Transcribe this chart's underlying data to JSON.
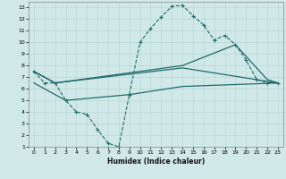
{
  "xlabel": "Humidex (Indice chaleur)",
  "xlim": [
    -0.5,
    23.5
  ],
  "ylim": [
    1,
    13.5
  ],
  "yticks": [
    1,
    2,
    3,
    4,
    5,
    6,
    7,
    8,
    9,
    10,
    11,
    12,
    13
  ],
  "xticks": [
    0,
    1,
    2,
    3,
    4,
    5,
    6,
    7,
    8,
    9,
    10,
    11,
    12,
    13,
    14,
    15,
    16,
    17,
    18,
    19,
    20,
    21,
    22,
    23
  ],
  "background_color": "#d0e8e8",
  "grid_color": "#b8d8d8",
  "line_color": "#1e6b6b",
  "line1_x": [
    0,
    1,
    2,
    3,
    4,
    5,
    6,
    7,
    8,
    9,
    10,
    11,
    12,
    13,
    14,
    15,
    16,
    17,
    18,
    19,
    20,
    21,
    22,
    23
  ],
  "line1_y": [
    7.5,
    6.5,
    6.5,
    5.0,
    4.0,
    3.8,
    2.5,
    1.3,
    1.0,
    5.5,
    10.0,
    11.2,
    12.2,
    13.1,
    13.2,
    12.3,
    11.5,
    10.2,
    10.6,
    9.8,
    8.5,
    6.8,
    6.5,
    6.5
  ],
  "line2_x": [
    0,
    2,
    14,
    19,
    22,
    23
  ],
  "line2_y": [
    7.5,
    6.5,
    8.0,
    9.8,
    6.8,
    6.5
  ],
  "line3_x": [
    0,
    2,
    14,
    23
  ],
  "line3_y": [
    7.5,
    6.5,
    7.8,
    6.5
  ],
  "line4_x": [
    0,
    3,
    9,
    14,
    23
  ],
  "line4_y": [
    6.5,
    5.0,
    5.5,
    6.2,
    6.5
  ]
}
